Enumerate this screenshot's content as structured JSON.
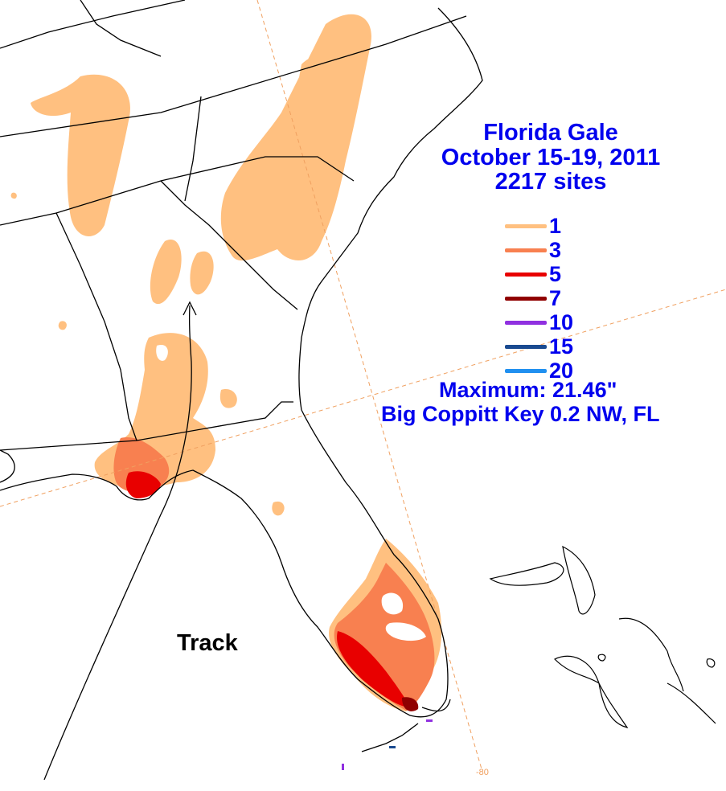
{
  "title": {
    "line1": "Florida Gale",
    "line2": "October 15-19, 2011",
    "line3": "2217 sites"
  },
  "legend": [
    {
      "label": "1",
      "color": "#ffc080"
    },
    {
      "label": "3",
      "color": "#f88050"
    },
    {
      "label": "5",
      "color": "#e80000"
    },
    {
      "label": "7",
      "color": "#900000"
    },
    {
      "label": "10",
      "color": "#9030e0"
    },
    {
      "label": "15",
      "color": "#1a4a90"
    },
    {
      "label": "20",
      "color": "#2090f0"
    }
  ],
  "maximum": {
    "text": "Maximum:  21.46\"",
    "location": "Big Coppitt Key 0.2 NW, FL"
  },
  "track_label": "Track",
  "longitude_label": "-80",
  "colors": {
    "contour_1": "#ffc080",
    "contour_3": "#f88050",
    "contour_5": "#e80000",
    "contour_7": "#900000",
    "text_accent": "#0000ee",
    "graticule": "#f0a060"
  }
}
